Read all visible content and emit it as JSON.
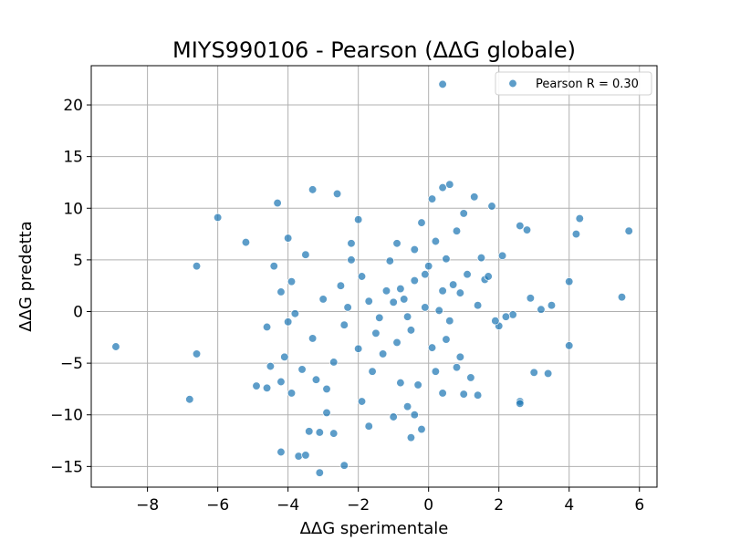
{
  "chart_data": {
    "type": "scatter",
    "title": "MIYS990106 - Pearson (ΔΔG globale)",
    "xlabel": "ΔΔG sperimentale",
    "ylabel": "ΔΔG predetta",
    "xlim": [
      -9.6,
      6.5
    ],
    "ylim": [
      -17.0,
      23.8
    ],
    "x_ticks": [
      -8,
      -6,
      -4,
      -2,
      0,
      2,
      4,
      6
    ],
    "x_tick_labels": [
      "−8",
      "−6",
      "−4",
      "−2",
      "0",
      "2",
      "4",
      "6"
    ],
    "y_ticks": [
      -15,
      -10,
      -5,
      0,
      5,
      10,
      15,
      20
    ],
    "y_tick_labels": [
      "−15",
      "−10",
      "−5",
      "0",
      "5",
      "10",
      "15",
      "20"
    ],
    "grid": true,
    "legend_position": "top-right",
    "series": [
      {
        "name": "Pearson R = 0.30",
        "color": "#1f77b4",
        "points": [
          [
            0.4,
            22.0
          ],
          [
            0.6,
            12.3
          ],
          [
            1.3,
            11.1
          ],
          [
            0.4,
            12.0
          ],
          [
            -3.3,
            11.8
          ],
          [
            -2.6,
            11.4
          ],
          [
            -4.3,
            10.5
          ],
          [
            -6.0,
            9.1
          ],
          [
            -5.2,
            6.7
          ],
          [
            -6.6,
            4.4
          ],
          [
            -4.4,
            4.4
          ],
          [
            -4.0,
            7.1
          ],
          [
            -8.9,
            -3.4
          ],
          [
            -6.6,
            -4.1
          ],
          [
            -6.8,
            -8.5
          ],
          [
            -4.9,
            -7.2
          ],
          [
            -4.6,
            -7.4
          ],
          [
            -4.5,
            -5.3
          ],
          [
            -4.2,
            -13.6
          ],
          [
            -3.7,
            -14.0
          ],
          [
            -3.5,
            -13.9
          ],
          [
            -3.1,
            -15.6
          ],
          [
            -2.4,
            -14.9
          ],
          [
            -3.4,
            -11.6
          ],
          [
            -3.1,
            -11.7
          ],
          [
            -2.7,
            -11.8
          ],
          [
            -1.7,
            -11.1
          ],
          [
            -0.5,
            -12.2
          ],
          [
            -0.2,
            -11.4
          ],
          [
            -0.4,
            -10.0
          ],
          [
            2.6,
            8.3
          ],
          [
            2.8,
            7.9
          ],
          [
            4.3,
            9.0
          ],
          [
            4.2,
            7.5
          ],
          [
            5.7,
            7.8
          ],
          [
            2.1,
            5.4
          ],
          [
            4.0,
            2.9
          ],
          [
            5.5,
            1.4
          ],
          [
            3.5,
            0.6
          ],
          [
            3.2,
            0.2
          ],
          [
            2.9,
            1.3
          ],
          [
            2.4,
            -0.3
          ],
          [
            2.0,
            -1.4
          ],
          [
            4.0,
            -3.3
          ],
          [
            3.0,
            -5.9
          ],
          [
            3.4,
            -6.0
          ],
          [
            2.6,
            -8.7
          ],
          [
            2.6,
            -8.9
          ],
          [
            1.8,
            10.2
          ],
          [
            -2.2,
            6.6
          ],
          [
            -2.0,
            8.9
          ],
          [
            -1.7,
            1.0
          ],
          [
            -1.2,
            2.0
          ],
          [
            0.1,
            10.9
          ],
          [
            1.0,
            9.5
          ],
          [
            0.8,
            7.8
          ],
          [
            0.5,
            5.1
          ],
          [
            0.0,
            4.4
          ],
          [
            -0.4,
            3.0
          ],
          [
            -0.8,
            2.2
          ],
          [
            -1.0,
            0.9
          ],
          [
            -0.6,
            -0.5
          ],
          [
            -0.1,
            0.4
          ],
          [
            0.3,
            0.1
          ],
          [
            0.6,
            -0.9
          ],
          [
            0.9,
            1.8
          ],
          [
            1.1,
            3.6
          ],
          [
            1.4,
            0.6
          ],
          [
            -1.5,
            -2.1
          ],
          [
            -2.0,
            -3.6
          ],
          [
            -2.4,
            -1.3
          ],
          [
            -2.7,
            -4.9
          ],
          [
            -3.2,
            -6.6
          ],
          [
            -3.9,
            -7.9
          ],
          [
            -3.3,
            -2.6
          ],
          [
            -0.8,
            -6.9
          ],
          [
            -1.3,
            -4.1
          ],
          [
            -0.5,
            -1.8
          ],
          [
            0.5,
            -2.7
          ],
          [
            0.9,
            -4.4
          ],
          [
            1.2,
            -6.4
          ],
          [
            0.4,
            -7.9
          ],
          [
            -0.6,
            -9.2
          ],
          [
            -1.9,
            -8.7
          ],
          [
            -2.9,
            -9.8
          ],
          [
            -3.6,
            -5.6
          ],
          [
            -4.1,
            -4.4
          ],
          [
            -3.8,
            -0.2
          ],
          [
            -3.0,
            1.2
          ],
          [
            -1.9,
            3.4
          ],
          [
            -0.4,
            6.0
          ],
          [
            0.7,
            2.6
          ],
          [
            1.6,
            3.1
          ],
          [
            1.9,
            -0.9
          ],
          [
            0.2,
            -5.8
          ],
          [
            -0.9,
            -3.0
          ],
          [
            -1.1,
            4.9
          ],
          [
            -0.2,
            8.6
          ],
          [
            1.5,
            5.2
          ],
          [
            -2.5,
            2.5
          ],
          [
            -3.5,
            5.5
          ],
          [
            -4.2,
            1.9
          ],
          [
            -3.9,
            2.9
          ],
          [
            1.7,
            3.4
          ],
          [
            0.1,
            -3.5
          ],
          [
            -0.7,
            1.2
          ],
          [
            -1.4,
            -0.6
          ],
          [
            0.4,
            2.0
          ],
          [
            -2.3,
            0.4
          ],
          [
            -1.6,
            -5.8
          ],
          [
            -0.3,
            -7.1
          ],
          [
            0.8,
            -5.4
          ],
          [
            2.2,
            -0.5
          ],
          [
            -2.9,
            -7.5
          ],
          [
            -1.0,
            -10.2
          ],
          [
            1.0,
            -8.0
          ],
          [
            1.4,
            -8.1
          ],
          [
            -4.2,
            -6.8
          ],
          [
            -4.0,
            -1.0
          ],
          [
            -4.6,
            -1.5
          ],
          [
            -2.2,
            5.0
          ],
          [
            -0.9,
            6.6
          ],
          [
            0.2,
            6.8
          ],
          [
            -0.1,
            3.6
          ]
        ]
      }
    ]
  }
}
